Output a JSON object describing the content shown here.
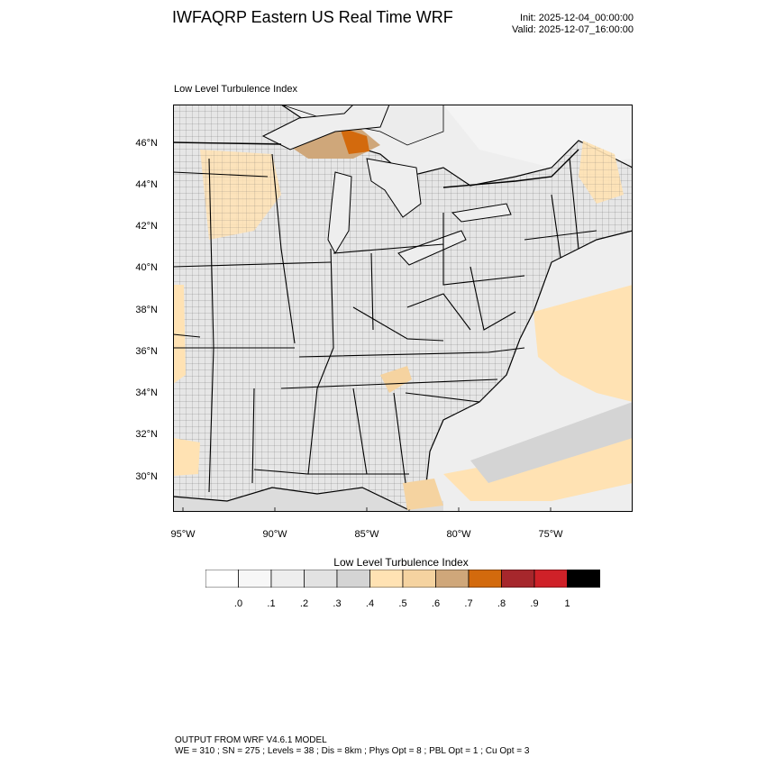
{
  "header": {
    "title": "IWFAQRP Eastern US Real Time WRF",
    "init": "Init: 2025-12-04_00:00:00",
    "valid": "Valid: 2025-12-07_16:00:00"
  },
  "panel": {
    "title": "Low Level Turbulence Index",
    "lat_labels": [
      "46°N",
      "44°N",
      "42°N",
      "40°N",
      "38°N",
      "36°N",
      "34°N",
      "32°N",
      "30°N"
    ],
    "lon_labels": [
      "95°W",
      "90°W",
      "85°W",
      "80°W",
      "75°W"
    ]
  },
  "colorbar": {
    "title": "Low Level Turbulence Index",
    "tick_labels": [
      ".0",
      ".1",
      ".2",
      ".3",
      ".4",
      ".5",
      ".6",
      ".7",
      ".8",
      ".9",
      "1"
    ],
    "colors": [
      "#ffffff",
      "#f7f7f7",
      "#eeeeee",
      "#e2e2e2",
      "#d4d4d4",
      "#ffe2b3",
      "#f5d3a0",
      "#cfa77a",
      "#d36a0d",
      "#a6272c",
      "#cf2128",
      "#000000"
    ]
  },
  "footer": {
    "line1": "OUTPUT FROM WRF V4.6.1 MODEL",
    "line2": "WE = 310 ; SN = 275 ; Levels = 38 ; Dis = 8km ; Phys Opt = 8 ; PBL Opt = 1 ; Cu Opt = 3"
  }
}
